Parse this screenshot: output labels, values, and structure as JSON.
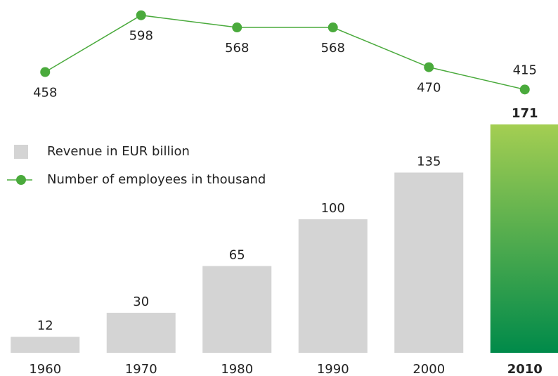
{
  "chart_data": {
    "type": "bar",
    "categories": [
      "1960",
      "1970",
      "1980",
      "1990",
      "2000",
      "2010"
    ],
    "series": [
      {
        "name": "Revenue in EUR billion",
        "type": "bar",
        "color": "#d4d4d4",
        "values": [
          12,
          30,
          65,
          100,
          135,
          171
        ]
      },
      {
        "name": "Number of employees in thousand",
        "type": "line",
        "axis": "y2",
        "color": "#4aaa3c",
        "values": [
          458,
          598,
          568,
          568,
          470,
          415
        ]
      }
    ],
    "ylim": [
      0,
      180
    ],
    "y2lim": [
      400,
      620
    ],
    "highlight": 5,
    "highlight_colors": [
      "#a4ce52",
      "#008a4a"
    ],
    "grid": false
  }
}
